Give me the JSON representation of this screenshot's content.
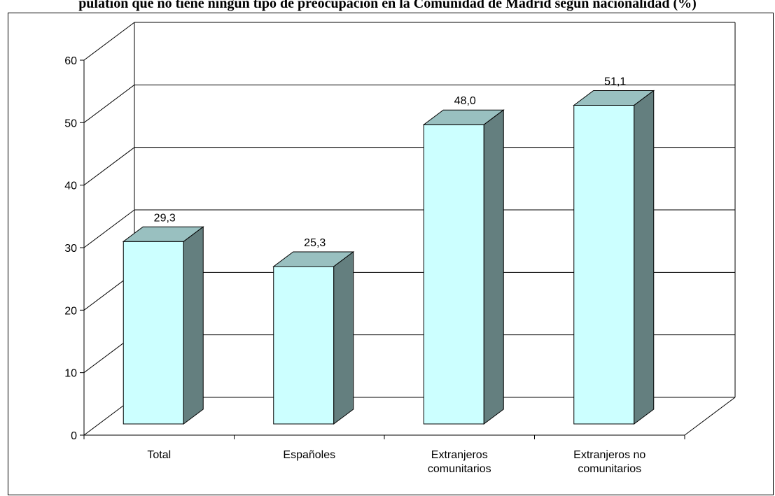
{
  "chart_data": {
    "type": "bar",
    "title": "pulation que no tiene ningún tipo de preocupación en la Comunidad de Madrid según nacionalidad (%)",
    "categories": [
      [
        "Total"
      ],
      [
        "Españoles"
      ],
      [
        "Extranjeros",
        "comunitarios"
      ],
      [
        "Extranjeros no",
        "comunitarios"
      ]
    ],
    "values": [
      29.3,
      25.3,
      48.0,
      51.1
    ],
    "data_labels": [
      "29,3",
      "25,3",
      "48,0",
      "51,1"
    ],
    "ylim": [
      0,
      60
    ],
    "yticks": [
      0,
      10,
      20,
      30,
      40,
      50,
      60
    ],
    "grid": true,
    "colors": {
      "bar_front": "#ccffff",
      "bar_top": "#99c0c0",
      "bar_side": "#647f7f",
      "grid": "#000000",
      "frame": "#000000"
    }
  }
}
